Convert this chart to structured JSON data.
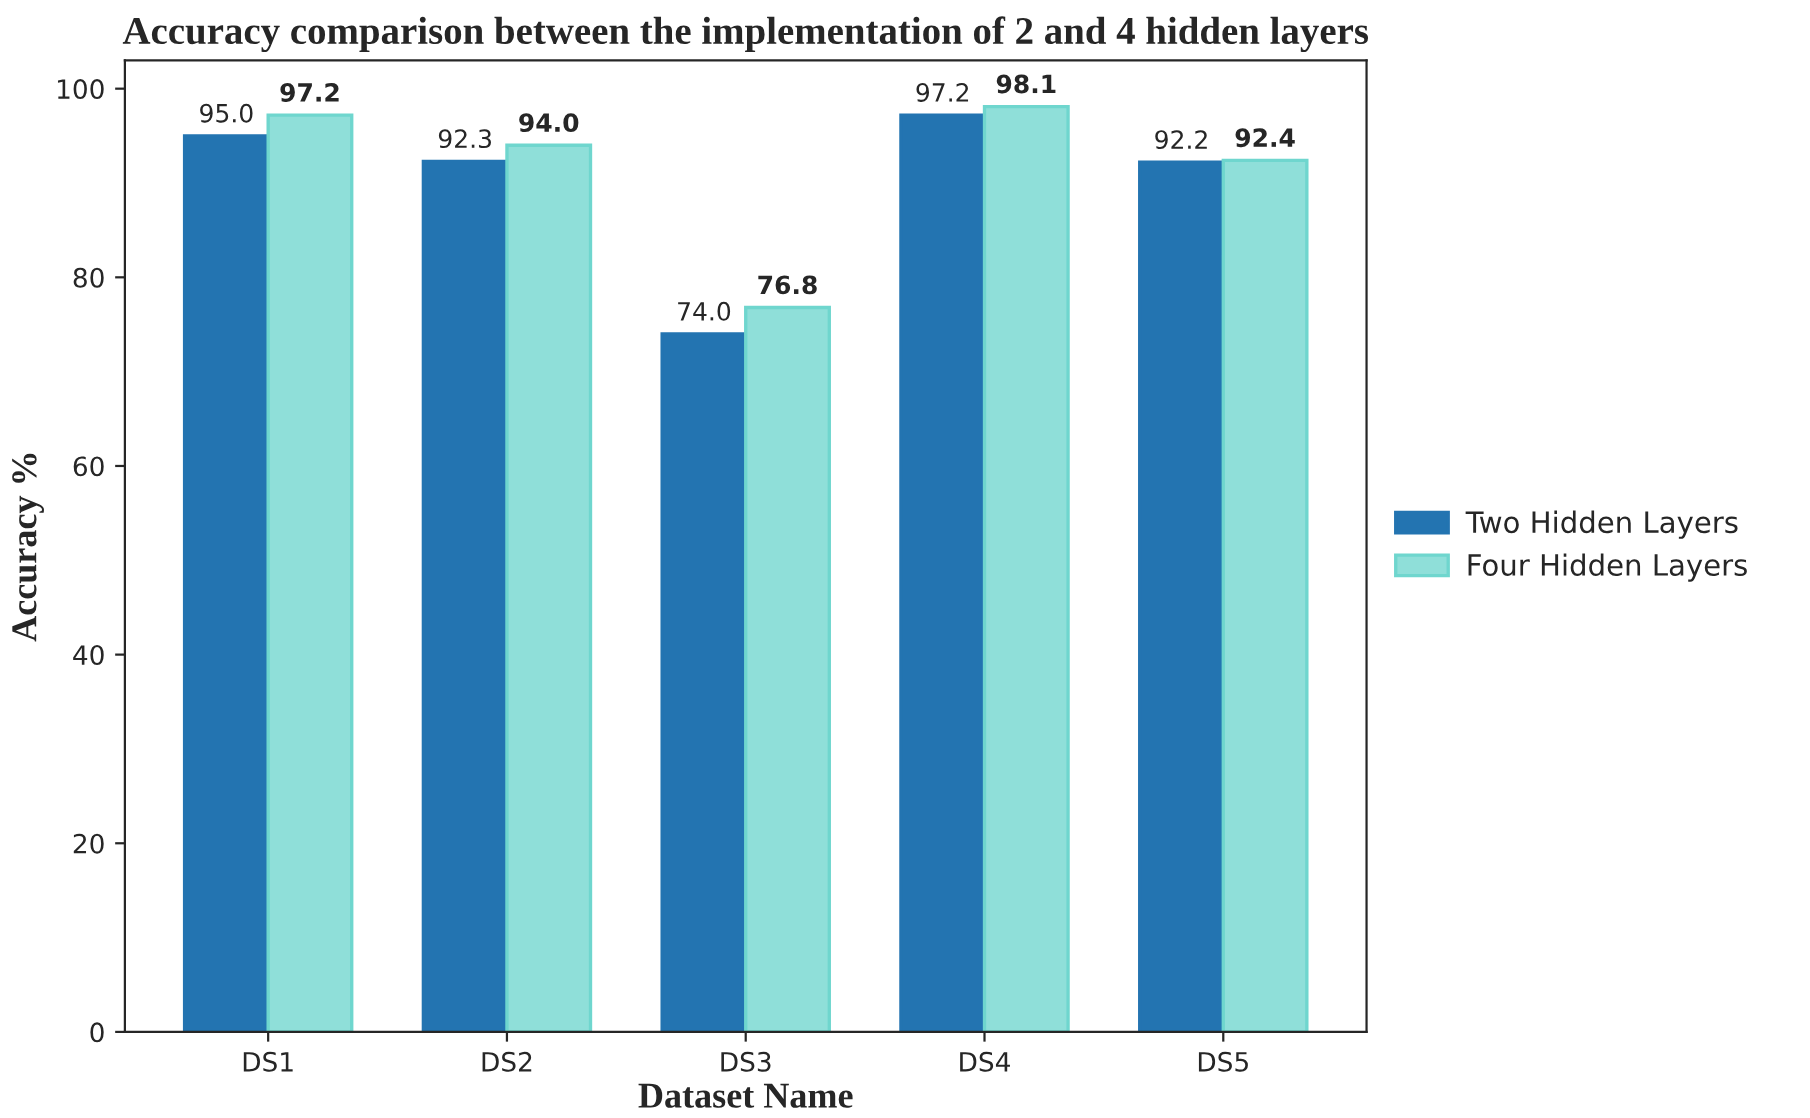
{
  "chart_data": {
    "type": "bar",
    "title": "Accuracy comparison between the implementation of 2 and 4 hidden layers",
    "xlabel": "Dataset Name",
    "ylabel": "Accuracy %",
    "categories": [
      "DS1",
      "DS2",
      "DS3",
      "DS4",
      "DS5"
    ],
    "series": [
      {
        "name": "Two Hidden Layers",
        "color": "#2374b1",
        "values": [
          95.0,
          92.3,
          74.0,
          97.2,
          92.2
        ],
        "value_labels": [
          "95.0",
          "92.3",
          "74.0",
          "97.2",
          "92.2"
        ]
      },
      {
        "name": "Four Hidden Layers",
        "color": "#8fdfd9",
        "values": [
          97.2,
          94.0,
          76.8,
          98.1,
          92.4
        ],
        "value_labels": [
          "97.2",
          "94.0",
          "76.8",
          "98.1",
          "92.4"
        ]
      }
    ],
    "ylim": [
      0,
      103
    ],
    "yticks": [
      0,
      20,
      40,
      60,
      80,
      100
    ],
    "legend": "right",
    "grid": false
  }
}
